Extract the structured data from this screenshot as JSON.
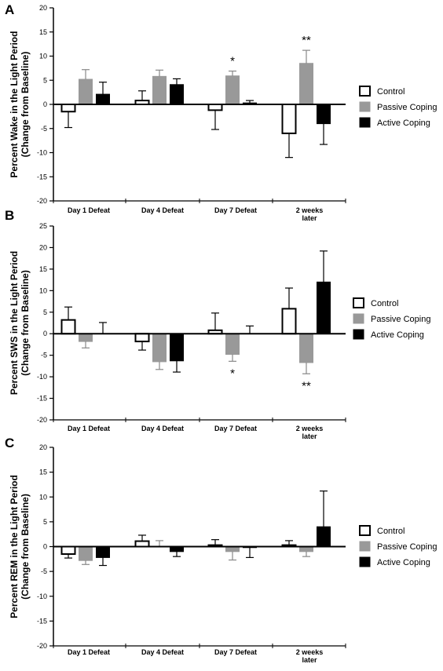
{
  "colors": {
    "Control": "#ffffff",
    "Passive Coping": "#999999",
    "Active Coping": "#000000",
    "axis": "#000000"
  },
  "legend": [
    "Control",
    "Passive Coping",
    "Active Coping"
  ],
  "chart_data": [
    {
      "panel": "A",
      "type": "bar",
      "ylabel": [
        "Percent Wake in the Light Period",
        "(Change from Baseline)"
      ],
      "ylim": [
        -20,
        20
      ],
      "yticks": [
        20,
        15,
        10,
        5,
        0,
        -5,
        -10,
        -15,
        -20
      ],
      "categories": [
        [
          "Day 1 Defeat"
        ],
        [
          "Day 4 Defeat"
        ],
        [
          "Day 7 Defeat"
        ],
        [
          "2 weeks",
          "later"
        ]
      ],
      "series": [
        {
          "name": "Control",
          "values": [
            -1.5,
            0.8,
            -1.2,
            -6
          ],
          "errors": [
            3.3,
            2,
            4,
            5
          ]
        },
        {
          "name": "Passive Coping",
          "values": [
            5.2,
            5.8,
            5.9,
            8.5
          ],
          "errors": [
            2,
            1.3,
            1,
            2.7
          ]
        },
        {
          "name": "Active Coping",
          "values": [
            2.1,
            4.1,
            0.3,
            -4
          ],
          "errors": [
            2.5,
            1.2,
            0.5,
            4.3
          ]
        }
      ],
      "annotations": [
        {
          "text": "*",
          "category": 2,
          "series": 1,
          "pos": "above"
        },
        {
          "text": "**",
          "category": 3,
          "series": 1,
          "pos": "above"
        }
      ],
      "legend_position": "right"
    },
    {
      "panel": "B",
      "type": "bar",
      "ylabel": [
        "Percent SWS  in the Light Period",
        "(Change from Baseline)"
      ],
      "ylim": [
        -20,
        25
      ],
      "yticks": [
        25,
        20,
        15,
        10,
        5,
        0,
        -5,
        -10,
        -15,
        -20
      ],
      "categories": [
        [
          "Day 1 Defeat"
        ],
        [
          "Day 4 Defeat"
        ],
        [
          "Day 7 Defeat"
        ],
        [
          "2 weeks",
          "later"
        ]
      ],
      "series": [
        {
          "name": "Control",
          "values": [
            3.2,
            -1.8,
            0.8,
            5.8
          ],
          "errors": [
            3,
            2,
            4,
            4.8
          ]
        },
        {
          "name": "Passive Coping",
          "values": [
            -1.8,
            -6.5,
            -4.8,
            -6.7
          ],
          "errors": [
            1.5,
            1.8,
            1.6,
            2.6
          ]
        },
        {
          "name": "Active Coping",
          "values": [
            0,
            -6.3,
            0,
            12
          ],
          "errors": [
            2.6,
            2.6,
            1.8,
            7.2
          ]
        }
      ],
      "annotations": [
        {
          "text": "*",
          "category": 2,
          "series": 1,
          "pos": "below"
        },
        {
          "text": "**",
          "category": 3,
          "series": 1,
          "pos": "below"
        }
      ],
      "legend_position": "right"
    },
    {
      "panel": "C",
      "type": "bar",
      "ylabel": [
        "Percent REM in the Light Period",
        "(Change from Baseline)"
      ],
      "ylim": [
        -20,
        20
      ],
      "yticks": [
        20,
        15,
        10,
        5,
        0,
        -5,
        -10,
        -15,
        -20
      ],
      "categories": [
        [
          "Day 1 Defeat"
        ],
        [
          "Day 4 Defeat"
        ],
        [
          "Day 7 Defeat"
        ],
        [
          "2 weeks",
          "later"
        ]
      ],
      "series": [
        {
          "name": "Control",
          "values": [
            -1.5,
            1.1,
            0.3,
            0.3
          ],
          "errors": [
            0.8,
            1.2,
            1.1,
            0.9
          ]
        },
        {
          "name": "Passive Coping",
          "values": [
            -2.8,
            0,
            -1,
            -1
          ],
          "errors": [
            0.8,
            1.2,
            1.7,
            1
          ]
        },
        {
          "name": "Active Coping",
          "values": [
            -2.2,
            -1,
            -0.2,
            4
          ],
          "errors": [
            1.6,
            1,
            2,
            7.2
          ]
        }
      ],
      "annotations": [],
      "legend_position": "right"
    }
  ]
}
